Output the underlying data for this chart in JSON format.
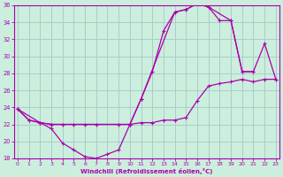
{
  "xlabel": "Windchill (Refroidissement éolien,°C)",
  "ylabel": "",
  "bg_color": "#cceedd",
  "grid_color": "#aacccc",
  "line_color": "#aa00aa",
  "line1_x": [
    0,
    1,
    2,
    3,
    4,
    5,
    6,
    7,
    8,
    9,
    10,
    11,
    12,
    13,
    14,
    15,
    16,
    17,
    18,
    19,
    20,
    21,
    22,
    23
  ],
  "line1_y": [
    23.8,
    22.5,
    22.2,
    21.5,
    19.8,
    19.0,
    18.2,
    18.0,
    18.5,
    19.0,
    22.0,
    22.2,
    22.2,
    22.5,
    22.5,
    22.8,
    24.8,
    26.5,
    26.8,
    27.0,
    27.3,
    27.0,
    27.3,
    27.3
  ],
  "line2_x": [
    0,
    1,
    2,
    3,
    4,
    5,
    6,
    7,
    9,
    10,
    11,
    12,
    13,
    14,
    15,
    16,
    17,
    18,
    19,
    20,
    21
  ],
  "line2_y": [
    23.8,
    22.5,
    22.2,
    22.0,
    22.0,
    22.0,
    22.0,
    22.0,
    22.0,
    22.0,
    25.0,
    28.2,
    33.0,
    35.2,
    35.5,
    36.2,
    35.8,
    34.2,
    34.2,
    28.2,
    28.2
  ],
  "line3_x": [
    0,
    2,
    3,
    10,
    11,
    14,
    15,
    16,
    17,
    19,
    20,
    21,
    22,
    23
  ],
  "line3_y": [
    23.8,
    22.2,
    22.0,
    22.0,
    25.0,
    35.2,
    35.5,
    36.2,
    35.8,
    34.2,
    28.2,
    28.2,
    31.5,
    27.3
  ],
  "xlim": [
    -0.3,
    23.3
  ],
  "ylim": [
    18,
    36
  ],
  "yticks": [
    18,
    20,
    22,
    24,
    26,
    28,
    30,
    32,
    34,
    36
  ],
  "xticks": [
    0,
    1,
    2,
    3,
    4,
    5,
    6,
    7,
    8,
    9,
    10,
    11,
    12,
    13,
    14,
    15,
    16,
    17,
    18,
    19,
    20,
    21,
    22,
    23
  ]
}
